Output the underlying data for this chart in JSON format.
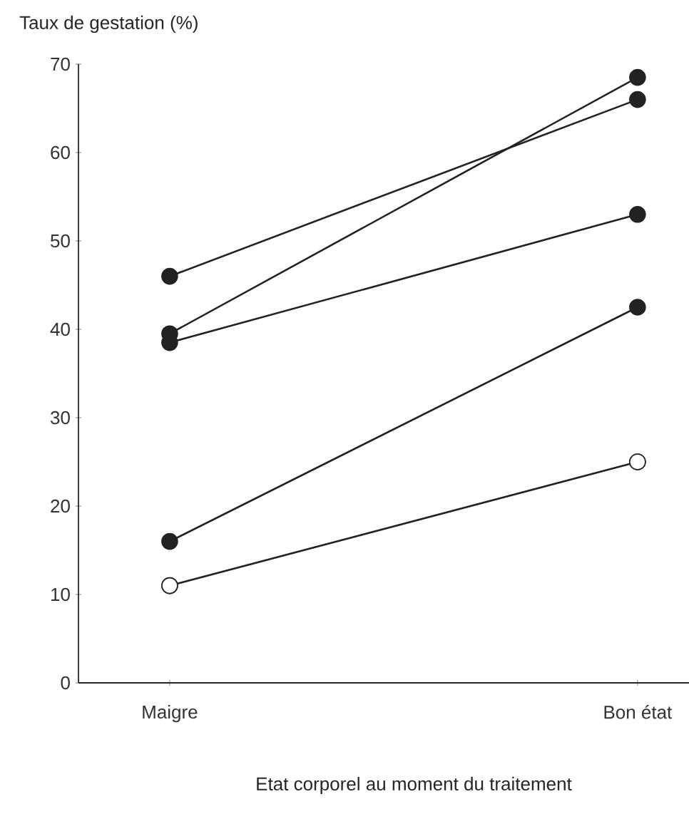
{
  "chart_data": {
    "type": "line",
    "ylabel": "Taux de gestation (%)",
    "xlabel": "Etat corporel au moment du traitement",
    "categories": [
      "Maigre",
      "Bon état"
    ],
    "series": [
      {
        "color": "#222222",
        "values": [
          46,
          66
        ]
      },
      {
        "color": "#222222",
        "values": [
          39.5,
          68.5
        ]
      },
      {
        "color": "#222222",
        "values": [
          38.5,
          53
        ]
      },
      {
        "color": "#222222",
        "values": [
          16,
          42.5
        ]
      },
      {
        "color": "#222222",
        "colors": [
          "#ffffff",
          "#ffffff"
        ],
        "values": [
          11,
          25
        ]
      }
    ],
    "ylim": [
      0,
      70
    ],
    "yticks": [
      0,
      10,
      20,
      30,
      40,
      50,
      60,
      70
    ],
    "marker": "circle",
    "line_style": "solid",
    "grid": false
  }
}
